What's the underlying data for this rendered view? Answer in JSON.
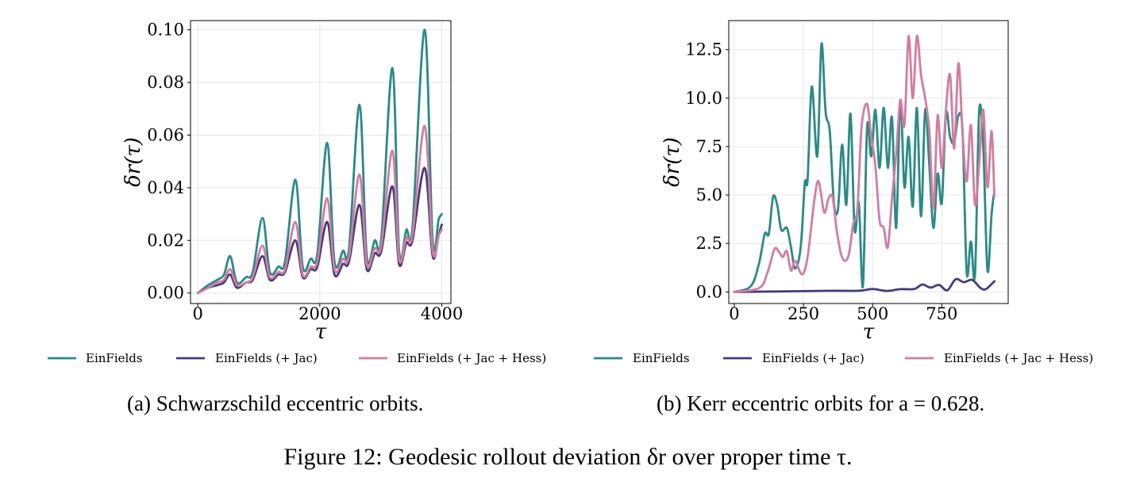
{
  "figure": {
    "caption_prefix": "Figure 12:",
    "caption_text": "Geodesic rollout deviation δr over proper time τ."
  },
  "colors": {
    "EinFields": "#268c88",
    "Jac": "#433b80",
    "JacHess": "#d77aa0",
    "grid": "#e6e6e6"
  },
  "legend_labels": [
    "EinFields",
    "EinFields (+ Jac)",
    "EinFields (+ Jac + Hess)"
  ],
  "chart_data": [
    {
      "type": "line",
      "id": "a",
      "caption": "(a) Schwarzschild eccentric orbits.",
      "xlabel": "τ",
      "ylabel": "δr(τ)",
      "xlim": [
        -120,
        4150
      ],
      "ylim": [
        -0.004,
        0.1035
      ],
      "xticks": [
        0,
        2000,
        4000
      ],
      "xtick_labels": [
        "0",
        "2000",
        "4000"
      ],
      "yticks": [
        0.0,
        0.02,
        0.04,
        0.06,
        0.08,
        0.1
      ],
      "ytick_labels": [
        "0.00",
        "0.02",
        "0.04",
        "0.06",
        "0.08",
        "0.10"
      ],
      "grid": true,
      "series": [
        {
          "name": "EinFields",
          "color": "#268c88",
          "x": [
            0,
            170,
            320,
            430,
            530,
            640,
            790,
            900,
            1060,
            1180,
            1320,
            1430,
            1600,
            1720,
            1850,
            1960,
            2120,
            2240,
            2380,
            2480,
            2650,
            2770,
            2900,
            3010,
            3190,
            3300,
            3420,
            3520,
            3720,
            3850,
            3950,
            4000
          ],
          "y": [
            0,
            0.003,
            0.005,
            0.007,
            0.014,
            0.004,
            0.006,
            0.008,
            0.0285,
            0.008,
            0.01,
            0.012,
            0.043,
            0.01,
            0.013,
            0.015,
            0.057,
            0.012,
            0.016,
            0.017,
            0.0715,
            0.014,
            0.02,
            0.021,
            0.0855,
            0.016,
            0.024,
            0.025,
            0.1,
            0.02,
            0.028,
            0.03
          ]
        },
        {
          "name": "EinFields (+ Jac)",
          "color": "#433b80",
          "x": [
            0,
            170,
            320,
            430,
            530,
            640,
            790,
            900,
            1060,
            1180,
            1320,
            1430,
            1600,
            1720,
            1850,
            1960,
            2120,
            2240,
            2380,
            2480,
            2650,
            2770,
            2900,
            3010,
            3190,
            3300,
            3420,
            3520,
            3720,
            3850,
            3950,
            4000
          ],
          "y": [
            0,
            0.002,
            0.003,
            0.004,
            0.007,
            0.002,
            0.004,
            0.005,
            0.014,
            0.005,
            0.007,
            0.008,
            0.02,
            0.006,
            0.009,
            0.01,
            0.027,
            0.007,
            0.011,
            0.012,
            0.0335,
            0.009,
            0.015,
            0.016,
            0.0405,
            0.011,
            0.019,
            0.02,
            0.0475,
            0.014,
            0.022,
            0.026
          ]
        },
        {
          "name": "EinFields (+ Jac + Hess)",
          "color": "#d77aa0",
          "x": [
            0,
            170,
            320,
            430,
            530,
            640,
            790,
            900,
            1060,
            1180,
            1320,
            1430,
            1600,
            1720,
            1850,
            1960,
            2120,
            2240,
            2380,
            2480,
            2650,
            2770,
            2900,
            3010,
            3190,
            3300,
            3420,
            3520,
            3720,
            3850,
            3950,
            4000
          ],
          "y": [
            0,
            0.002,
            0.004,
            0.005,
            0.009,
            0.003,
            0.004,
            0.006,
            0.018,
            0.006,
            0.008,
            0.009,
            0.027,
            0.007,
            0.01,
            0.012,
            0.036,
            0.009,
            0.013,
            0.014,
            0.045,
            0.011,
            0.017,
            0.018,
            0.054,
            0.013,
            0.021,
            0.022,
            0.0635,
            0.016,
            0.022,
            0.024
          ]
        }
      ]
    },
    {
      "type": "line",
      "id": "b",
      "caption": "(b) Kerr eccentric orbits for a = 0.628.",
      "xlabel": "τ",
      "ylabel": "δr(τ)",
      "xlim": [
        -20,
        990
      ],
      "ylim": [
        -0.6,
        14.0
      ],
      "xticks": [
        0,
        250,
        500,
        750
      ],
      "xtick_labels": [
        "0",
        "250",
        "500",
        "750"
      ],
      "yticks": [
        0.0,
        2.5,
        5.0,
        7.5,
        10.0,
        12.5
      ],
      "ytick_labels": [
        "0.0",
        "2.5",
        "5.0",
        "7.5",
        "10.0",
        "12.5"
      ],
      "grid": true,
      "series": [
        {
          "name": "EinFields",
          "color": "#268c88",
          "x": [
            0,
            60,
            90,
            110,
            125,
            140,
            155,
            170,
            190,
            205,
            220,
            240,
            255,
            265,
            280,
            300,
            315,
            330,
            345,
            360,
            375,
            390,
            405,
            420,
            435,
            450,
            465,
            480,
            495,
            510,
            525,
            540,
            555,
            570,
            585,
            600,
            615,
            630,
            645,
            660,
            675,
            690,
            705,
            720,
            735,
            750,
            765,
            780,
            795,
            810,
            825,
            840,
            855,
            870,
            885,
            900,
            915,
            930,
            940
          ],
          "y": [
            0,
            0.3,
            1.5,
            3.0,
            3.0,
            4.9,
            4.5,
            3.2,
            3.3,
            2.3,
            1.2,
            2.3,
            5.6,
            5.8,
            10.6,
            7.0,
            12.8,
            9.3,
            8.3,
            4.6,
            4.3,
            7.6,
            4.5,
            9.2,
            3.2,
            4.6,
            0.3,
            8.5,
            7.0,
            9.4,
            6.4,
            9.5,
            6.4,
            9.0,
            3.3,
            9.9,
            5.4,
            8.0,
            4.4,
            9.5,
            3.9,
            9.4,
            6.5,
            3.3,
            6.1,
            4.6,
            9.2,
            8.0,
            7.7,
            9.1,
            8.3,
            1.0,
            2.6,
            0.9,
            9.3,
            7.5,
            1.1,
            4.0,
            5.2
          ]
        },
        {
          "name": "EinFields (+ Jac)",
          "color": "#433b80",
          "x": [
            0,
            150,
            250,
            350,
            450,
            500,
            550,
            600,
            650,
            680,
            710,
            740,
            770,
            800,
            830,
            860,
            890,
            910,
            940
          ],
          "y": [
            0,
            0.02,
            0.04,
            0.06,
            0.06,
            0.15,
            0.05,
            0.14,
            0.15,
            0.38,
            0.22,
            0.36,
            0.08,
            0.65,
            0.5,
            0.62,
            0.2,
            0.15,
            0.55
          ]
        },
        {
          "name": "EinFields (+ Jac + Hess)",
          "color": "#d77aa0",
          "x": [
            0,
            90,
            120,
            145,
            160,
            175,
            190,
            205,
            220,
            245,
            265,
            290,
            305,
            325,
            340,
            355,
            370,
            385,
            400,
            415,
            430,
            445,
            460,
            480,
            495,
            510,
            525,
            540,
            555,
            570,
            585,
            600,
            615,
            630,
            645,
            660,
            675,
            690,
            705,
            720,
            735,
            750,
            765,
            780,
            795,
            810,
            825,
            840,
            855,
            870,
            885,
            900,
            915,
            930,
            940
          ],
          "y": [
            0,
            0.2,
            1.0,
            2.2,
            2.1,
            1.8,
            2.1,
            1.1,
            1.6,
            0.9,
            1.8,
            4.8,
            5.7,
            4.1,
            4.8,
            4.9,
            3.2,
            2.0,
            1.6,
            2.0,
            3.5,
            4.3,
            8.5,
            9.7,
            8.0,
            6.5,
            3.7,
            3.3,
            2.3,
            4.8,
            7.1,
            9.9,
            8.6,
            13.2,
            10.0,
            13.2,
            11.2,
            10.0,
            8.3,
            4.3,
            9.1,
            6.4,
            9.4,
            11.2,
            7.4,
            11.8,
            8.2,
            5.7,
            8.6,
            4.5,
            6.6,
            9.4,
            5.4,
            8.3,
            4.9
          ]
        }
      ]
    }
  ]
}
